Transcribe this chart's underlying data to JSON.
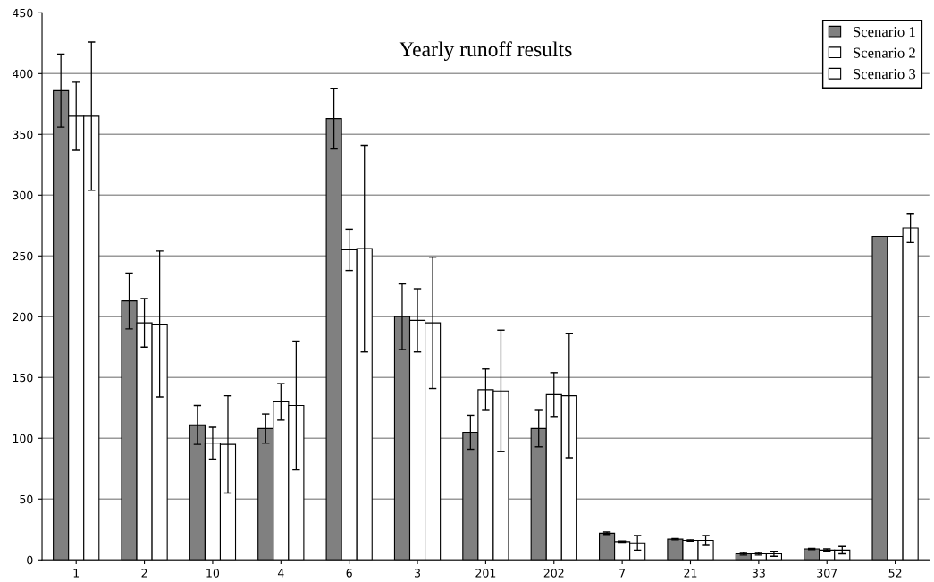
{
  "chart_data": {
    "type": "bar",
    "title": "Yearly runoff results",
    "categories": [
      "1",
      "2",
      "10",
      "4",
      "6",
      "3",
      "201",
      "202",
      "7",
      "21",
      "33",
      "307",
      "52"
    ],
    "series": [
      {
        "name": "Scenario 1",
        "color": "#808080",
        "values": [
          386,
          213,
          111,
          108,
          363,
          200,
          105,
          108,
          22,
          17,
          5,
          9,
          266
        ],
        "errors": [
          30,
          23,
          16,
          12,
          25,
          27,
          14,
          15,
          1,
          0.5,
          1,
          0.5,
          null
        ]
      },
      {
        "name": "Scenario 2",
        "color": "#ffffff",
        "values": [
          365,
          195,
          96,
          130,
          255,
          197,
          140,
          136,
          15,
          16,
          5,
          8,
          266
        ],
        "errors": [
          28,
          20,
          13,
          15,
          17,
          26,
          17,
          18,
          0.5,
          0.5,
          1,
          1,
          null
        ]
      },
      {
        "name": "Scenario 3",
        "color": "#ffffff",
        "values": [
          365,
          194,
          95,
          127,
          256,
          195,
          139,
          135,
          14,
          16,
          5,
          8,
          273
        ],
        "errors": [
          61,
          60,
          40,
          53,
          85,
          54,
          50,
          51,
          6,
          4,
          2,
          3,
          12
        ]
      }
    ],
    "ylim": [
      0,
      450
    ],
    "yticks": [
      0,
      50,
      100,
      150,
      200,
      250,
      300,
      350,
      400,
      450
    ],
    "grid": "y",
    "legend": "top right"
  }
}
